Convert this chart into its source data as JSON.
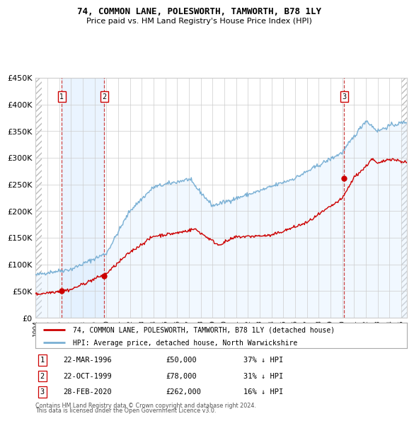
{
  "title": "74, COMMON LANE, POLESWORTH, TAMWORTH, B78 1LY",
  "subtitle": "Price paid vs. HM Land Registry's House Price Index (HPI)",
  "sales": [
    {
      "index": 1,
      "date_label": "22-MAR-1996",
      "price": 50000,
      "pct": "37% ↓ HPI",
      "x_year": 1996.22
    },
    {
      "index": 2,
      "date_label": "22-OCT-1999",
      "price": 78000,
      "pct": "31% ↓ HPI",
      "x_year": 1999.81
    },
    {
      "index": 3,
      "date_label": "28-FEB-2020",
      "price": 262000,
      "pct": "16% ↓ HPI",
      "x_year": 2020.16
    }
  ],
  "legend_entries": [
    "74, COMMON LANE, POLESWORTH, TAMWORTH, B78 1LY (detached house)",
    "HPI: Average price, detached house, North Warwickshire"
  ],
  "footnote1": "Contains HM Land Registry data © Crown copyright and database right 2024.",
  "footnote2": "This data is licensed under the Open Government Licence v3.0.",
  "xmin": 1994.0,
  "xmax": 2025.5,
  "ymin": 0,
  "ymax": 450000,
  "property_color": "#cc0000",
  "hpi_color": "#7ab0d4",
  "hpi_fill_color": "#ddeeff",
  "grid_color": "#cccccc",
  "dashed_line_color": "#cc4444",
  "sale_prop_prices": [
    50000,
    78000,
    262000
  ]
}
